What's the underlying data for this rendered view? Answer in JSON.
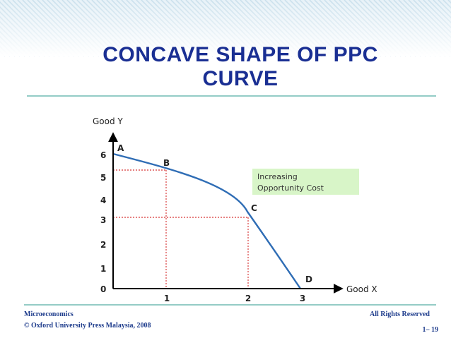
{
  "title": {
    "line1": "CONCAVE SHAPE OF PPC",
    "line2": "CURVE"
  },
  "diagram": {
    "y_axis_label": "Good Y",
    "x_axis_label": "Good X",
    "y_ticks": [
      "6",
      "5",
      "4",
      "3",
      "2",
      "1",
      "0"
    ],
    "x_ticks": [
      "1",
      "2",
      "3"
    ],
    "points": [
      {
        "label": "A",
        "x": 0,
        "y": 6
      },
      {
        "label": "B",
        "x": 1,
        "y": 5
      },
      {
        "label": "C",
        "x": 2,
        "y": 3
      },
      {
        "label": "D",
        "x": 3,
        "y": 0
      }
    ],
    "annotation": [
      "Increasing",
      "Opportunity Cost"
    ]
  },
  "footer": {
    "left_line1": "Microeconomics",
    "left_line2": "© Oxford University Press Malaysia, 2008",
    "right_line1": "All Rights Reserved",
    "page": "1– 19"
  },
  "colors": {
    "title": "#1a2f93",
    "curve": "#2f6db5",
    "guide": "#cc0000",
    "footer": "#1e3c8c",
    "rule": "#2a9a8c",
    "annotation_bg": "#d8f5c8",
    "header_bg": "#e8f2f8",
    "header_stripe": "#c3dcea"
  }
}
